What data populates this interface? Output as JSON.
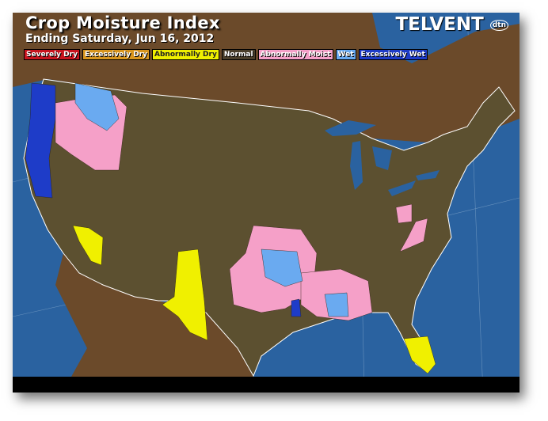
{
  "header": {
    "title": "Crop Moisture Index",
    "subtitle": "Ending Saturday, Jun 16, 2012",
    "logo": "TELVENT",
    "logo_badge": "dtn"
  },
  "legend": [
    {
      "label": "Severely Dry",
      "color": "#c8141e"
    },
    {
      "label": "Excessively Dry",
      "color": "#d9961e"
    },
    {
      "label": "Abnormally Dry",
      "color": "#f0f000"
    },
    {
      "label": "Normal",
      "color": "#4a3e2a"
    },
    {
      "label": "Abnormally Moist",
      "color": "#f5a0c8"
    },
    {
      "label": "Wet",
      "color": "#6aaaf0"
    },
    {
      "label": "Excessively Wet",
      "color": "#1e3cc8"
    }
  ],
  "colors": {
    "ocean": "#2a62a0",
    "land": "#6b4a2a",
    "us_normal": "#5c5030",
    "bottom_bar": "#000000"
  }
}
